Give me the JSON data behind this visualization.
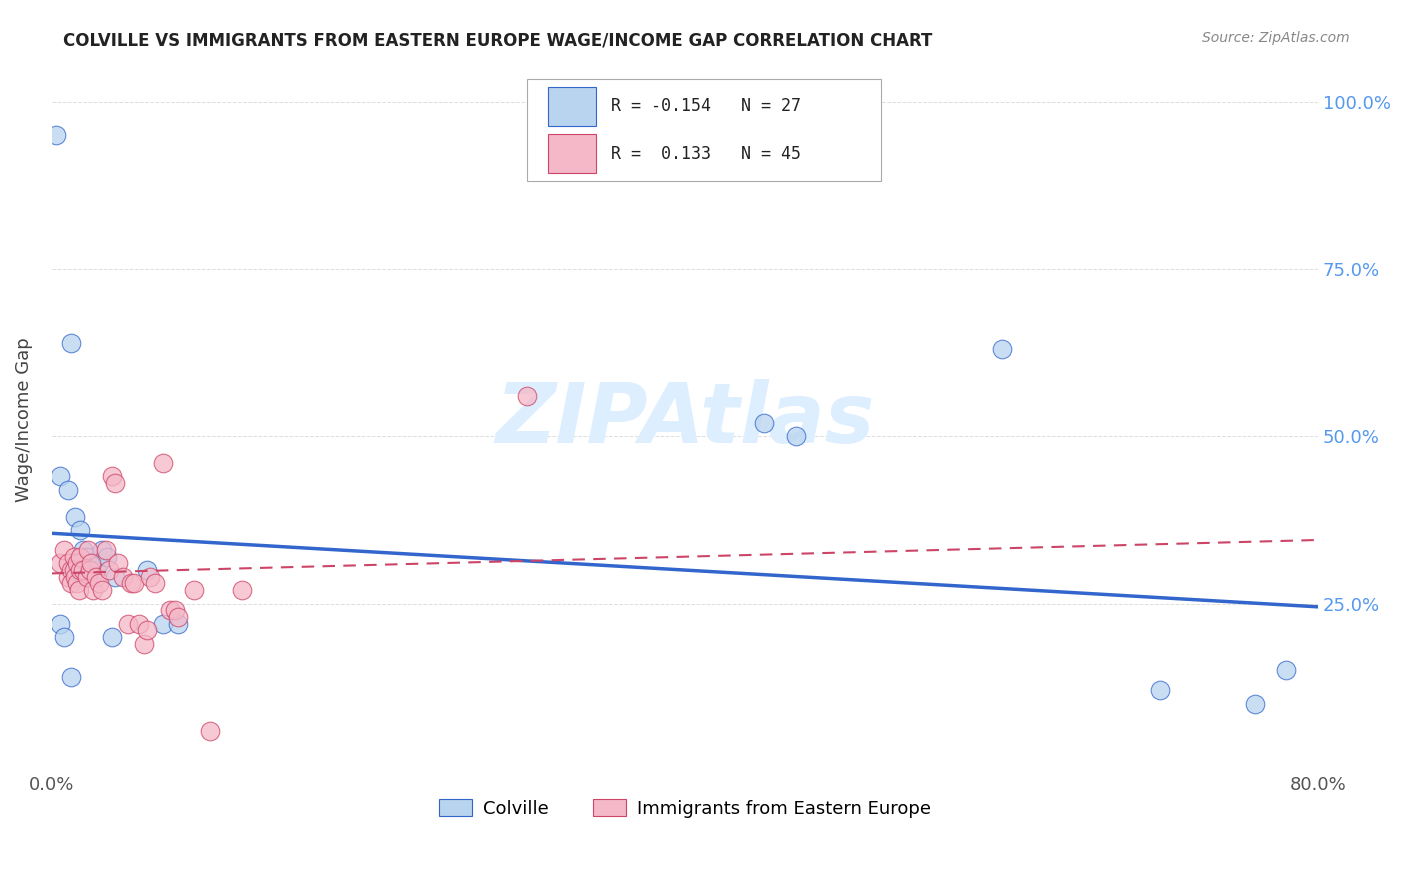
{
  "title": "COLVILLE VS IMMIGRANTS FROM EASTERN EUROPE WAGE/INCOME GAP CORRELATION CHART",
  "source": "Source: ZipAtlas.com",
  "ylabel": "Wage/Income Gap",
  "legend_blue_r": "-0.154",
  "legend_blue_n": "27",
  "legend_pink_r": "0.133",
  "legend_pink_n": "45",
  "blue_color": "#b8d4ee",
  "pink_color": "#f5b8c8",
  "blue_line_color": "#3366cc",
  "pink_line_color": "#cc4466",
  "blue_scatter": [
    [
      0.005,
      0.44
    ],
    [
      0.01,
      0.42
    ],
    [
      0.012,
      0.64
    ],
    [
      0.015,
      0.38
    ],
    [
      0.018,
      0.36
    ],
    [
      0.02,
      0.33
    ],
    [
      0.022,
      0.32
    ],
    [
      0.025,
      0.31
    ],
    [
      0.028,
      0.3
    ],
    [
      0.03,
      0.31
    ],
    [
      0.032,
      0.33
    ],
    [
      0.035,
      0.32
    ],
    [
      0.038,
      0.2
    ],
    [
      0.04,
      0.29
    ],
    [
      0.06,
      0.3
    ],
    [
      0.07,
      0.22
    ],
    [
      0.08,
      0.22
    ],
    [
      0.005,
      0.22
    ],
    [
      0.008,
      0.2
    ],
    [
      0.012,
      0.14
    ],
    [
      0.003,
      0.95
    ],
    [
      0.45,
      0.52
    ],
    [
      0.47,
      0.5
    ],
    [
      0.6,
      0.63
    ],
    [
      0.7,
      0.12
    ],
    [
      0.76,
      0.1
    ],
    [
      0.78,
      0.15
    ]
  ],
  "pink_scatter": [
    [
      0.005,
      0.31
    ],
    [
      0.008,
      0.33
    ],
    [
      0.01,
      0.31
    ],
    [
      0.01,
      0.29
    ],
    [
      0.012,
      0.3
    ],
    [
      0.012,
      0.28
    ],
    [
      0.014,
      0.32
    ],
    [
      0.014,
      0.3
    ],
    [
      0.015,
      0.29
    ],
    [
      0.016,
      0.31
    ],
    [
      0.016,
      0.28
    ],
    [
      0.017,
      0.27
    ],
    [
      0.018,
      0.3
    ],
    [
      0.018,
      0.32
    ],
    [
      0.02,
      0.3
    ],
    [
      0.022,
      0.29
    ],
    [
      0.023,
      0.33
    ],
    [
      0.024,
      0.3
    ],
    [
      0.025,
      0.31
    ],
    [
      0.026,
      0.27
    ],
    [
      0.028,
      0.29
    ],
    [
      0.03,
      0.28
    ],
    [
      0.032,
      0.27
    ],
    [
      0.034,
      0.33
    ],
    [
      0.036,
      0.3
    ],
    [
      0.038,
      0.44
    ],
    [
      0.04,
      0.43
    ],
    [
      0.042,
      0.31
    ],
    [
      0.045,
      0.29
    ],
    [
      0.048,
      0.22
    ],
    [
      0.05,
      0.28
    ],
    [
      0.052,
      0.28
    ],
    [
      0.055,
      0.22
    ],
    [
      0.058,
      0.19
    ],
    [
      0.06,
      0.21
    ],
    [
      0.062,
      0.29
    ],
    [
      0.065,
      0.28
    ],
    [
      0.07,
      0.46
    ],
    [
      0.075,
      0.24
    ],
    [
      0.078,
      0.24
    ],
    [
      0.08,
      0.23
    ],
    [
      0.3,
      0.56
    ],
    [
      0.1,
      0.06
    ],
    [
      0.12,
      0.27
    ],
    [
      0.09,
      0.27
    ]
  ],
  "blue_trend": [
    0.0,
    0.8,
    0.355,
    0.245
  ],
  "pink_trend": [
    0.0,
    0.8,
    0.295,
    0.345
  ],
  "xlim": [
    0.0,
    0.8
  ],
  "ylim": [
    0.0,
    1.05
  ],
  "xtick_positions": [
    0.0,
    0.1,
    0.2,
    0.3,
    0.4,
    0.5,
    0.6,
    0.7,
    0.8
  ],
  "ytick_positions": [
    0.25,
    0.5,
    0.75,
    1.0
  ],
  "ytick_labels": [
    "25.0%",
    "50.0%",
    "75.0%",
    "100.0%"
  ],
  "watermark": "ZIPAtlas",
  "watermark_color": "#ddeeff",
  "grid_color": "#dddddd",
  "title_color": "#222222",
  "source_color": "#888888",
  "ylabel_color": "#444444",
  "right_tick_color": "#5599ee"
}
